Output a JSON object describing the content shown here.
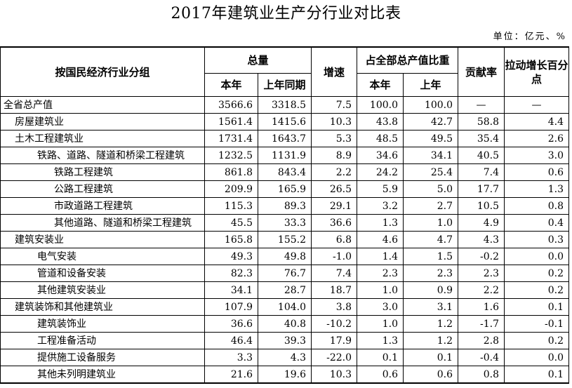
{
  "title": "2017年建筑业生产分行业对比表",
  "unit": "单位：亿元、%",
  "headers": {
    "category": "按国民经济行业分组",
    "total": "总量",
    "this_year": "本年",
    "last_year": "上年同期",
    "growth": "增速",
    "share": "占全部总产值比重",
    "share_this": "本年",
    "share_last": "上年",
    "contribution": "贡献率",
    "pull": "拉动增长百分点"
  },
  "rows": [
    {
      "name": "全省总产值",
      "this_year": "3566.6",
      "last_year": "3318.5",
      "growth": "7.5",
      "share_this": "100.0",
      "share_last": "100.0",
      "contribution": "—",
      "pull": "—"
    },
    {
      "name": "房屋建筑业",
      "this_year": "1561.4",
      "last_year": "1415.6",
      "growth": "10.3",
      "share_this": "43.8",
      "share_last": "42.7",
      "contribution": "58.8",
      "pull": "4.4"
    },
    {
      "name": "土木工程建筑业",
      "this_year": "1731.4",
      "last_year": "1643.7",
      "growth": "5.3",
      "share_this": "48.5",
      "share_last": "49.5",
      "contribution": "35.4",
      "pull": "2.6"
    },
    {
      "name": "铁路、道路、隧道和桥梁工程建筑",
      "this_year": "1232.5",
      "last_year": "1131.9",
      "growth": "8.9",
      "share_this": "34.6",
      "share_last": "34.1",
      "contribution": "40.5",
      "pull": "3.0"
    },
    {
      "name": "铁路工程建筑",
      "this_year": "861.8",
      "last_year": "843.4",
      "growth": "2.2",
      "share_this": "24.2",
      "share_last": "25.4",
      "contribution": "7.4",
      "pull": "0.6"
    },
    {
      "name": "公路工程建筑",
      "this_year": "209.9",
      "last_year": "165.9",
      "growth": "26.5",
      "share_this": "5.9",
      "share_last": "5.0",
      "contribution": "17.7",
      "pull": "1.3"
    },
    {
      "name": "市政道路工程建筑",
      "this_year": "115.3",
      "last_year": "89.3",
      "growth": "29.1",
      "share_this": "3.2",
      "share_last": "2.7",
      "contribution": "10.5",
      "pull": "0.8"
    },
    {
      "name": "其他道路、隧道和桥梁工程建筑",
      "this_year": "45.5",
      "last_year": "33.3",
      "growth": "36.6",
      "share_this": "1.3",
      "share_last": "1.0",
      "contribution": "4.9",
      "pull": "0.4"
    },
    {
      "name": "建筑安装业",
      "this_year": "165.8",
      "last_year": "155.2",
      "growth": "6.8",
      "share_this": "4.6",
      "share_last": "4.7",
      "contribution": "4.3",
      "pull": "0.3"
    },
    {
      "name": "电气安装",
      "this_year": "49.3",
      "last_year": "49.8",
      "growth": "-1.0",
      "share_this": "1.4",
      "share_last": "1.5",
      "contribution": "-0.2",
      "pull": "0.0"
    },
    {
      "name": "管道和设备安装",
      "this_year": "82.3",
      "last_year": "76.7",
      "growth": "7.4",
      "share_this": "2.3",
      "share_last": "2.3",
      "contribution": "2.3",
      "pull": "0.2"
    },
    {
      "name": "其他建筑安装业",
      "this_year": "34.1",
      "last_year": "28.7",
      "growth": "18.7",
      "share_this": "1.0",
      "share_last": "0.9",
      "contribution": "2.2",
      "pull": "0.2"
    },
    {
      "name": "建筑装饰和其他建筑业",
      "this_year": "107.9",
      "last_year": "104.0",
      "growth": "3.8",
      "share_this": "3.0",
      "share_last": "3.1",
      "contribution": "1.6",
      "pull": "0.1"
    },
    {
      "name": "建筑装饰业",
      "this_year": "36.6",
      "last_year": "40.8",
      "growth": "-10.2",
      "share_this": "1.0",
      "share_last": "1.2",
      "contribution": "-1.7",
      "pull": "-0.1"
    },
    {
      "name": "工程准备活动",
      "this_year": "46.4",
      "last_year": "39.3",
      "growth": "17.9",
      "share_this": "1.3",
      "share_last": "1.2",
      "contribution": "2.8",
      "pull": "0.2"
    },
    {
      "name": "提供施工设备服务",
      "this_year": "3.3",
      "last_year": "4.3",
      "growth": "-22.0",
      "share_this": "0.1",
      "share_last": "0.1",
      "contribution": "-0.4",
      "pull": "0.0"
    },
    {
      "name": "其他未列明建筑业",
      "this_year": "21.6",
      "last_year": "19.6",
      "growth": "10.3",
      "share_this": "0.6",
      "share_last": "0.6",
      "contribution": "0.8",
      "pull": "0.1"
    }
  ]
}
